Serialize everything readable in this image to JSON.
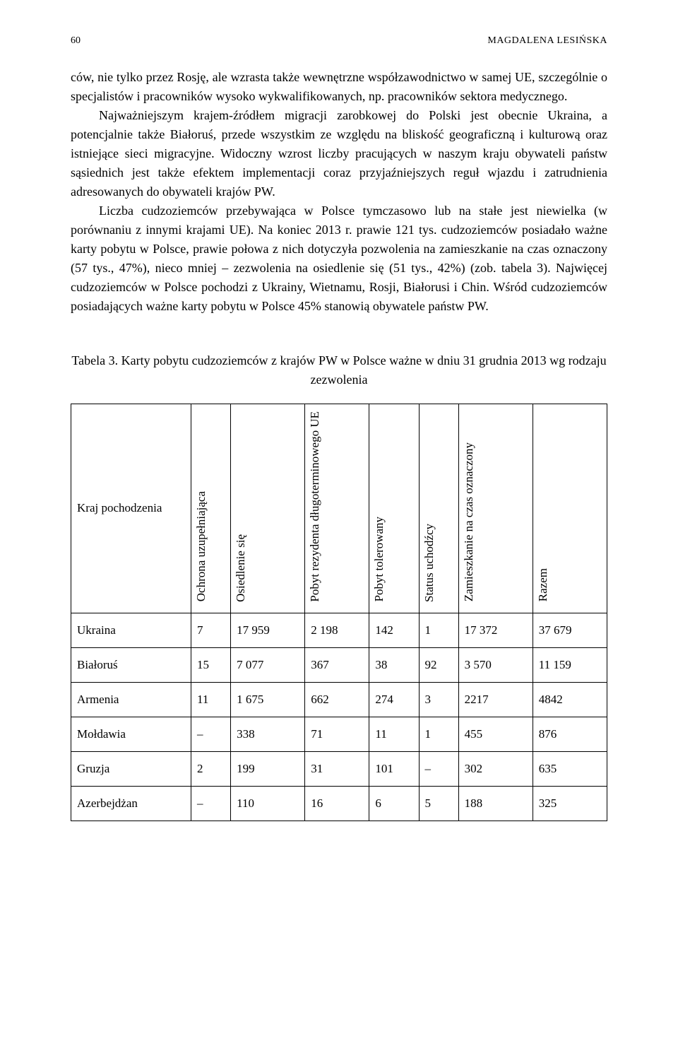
{
  "page_number": "60",
  "author": "MAGDALENA LESIŃSKA",
  "paragraphs": {
    "p1": "ców, nie tylko przez Rosję, ale wzrasta także wewnętrzne współzawodnictwo w samej UE, szczególnie o specjalistów i pracowników wysoko wykwalifikowanych, np. pracowników sektora medycznego.",
    "p2": "Najważniejszym krajem-źródłem migracji zarobkowej do Polski jest obecnie Ukraina, a potencjalnie także Białoruś, przede wszystkim ze względu na bliskość geograficzną i kulturową oraz istniejące sieci migracyjne. Widoczny wzrost liczby pracujących w naszym kraju obywateli państw sąsiednich jest także efektem implementacji coraz przyjaźniejszych reguł wjazdu i zatrudnienia adresowanych do obywateli krajów PW.",
    "p3": "Liczba cudzoziemców przebywająca w Polsce tymczasowo lub na stałe jest niewielka (w porównaniu z innymi krajami UE). Na koniec 2013 r. prawie 121 tys. cudzoziemców posiadało ważne karty pobytu w Polsce, prawie połowa z nich dotyczyła pozwolenia na zamieszkanie na czas oznaczony (57 tys., 47%), nieco mniej – zezwolenia na osiedlenie się (51 tys., 42%) (zob. tabela 3). Najwięcej cudzoziemców w Polsce pochodzi z Ukrainy, Wietnamu, Rosji, Białorusi i Chin. Wśród cudzoziemców posiadających ważne karty pobytu w Polsce 45% stanowią obywatele państw PW."
  },
  "table": {
    "caption": "Tabela 3. Karty pobytu cudzoziemców z krajów PW w Polsce ważne w dniu 31 grudnia 2013 wg rodzaju zezwolenia",
    "row_header": "Kraj pochodzenia",
    "columns": [
      "Ochrona uzupełniająca",
      "Osiedlenie się",
      "Pobyt rezydenta długoterminowego UE",
      "Pobyt tolerowany",
      "Status uchodźcy",
      "Zamieszkanie na czas oznaczony",
      "Razem"
    ],
    "rows": [
      {
        "country": "Ukraina",
        "cells": [
          "7",
          "17 959",
          "2 198",
          "142",
          "1",
          "17 372",
          "37 679"
        ]
      },
      {
        "country": "Białoruś",
        "cells": [
          "15",
          "7 077",
          "367",
          "38",
          "92",
          "3 570",
          "11 159"
        ]
      },
      {
        "country": "Armenia",
        "cells": [
          "11",
          "1 675",
          "662",
          "274",
          "3",
          "2217",
          "4842"
        ]
      },
      {
        "country": "Mołdawia",
        "cells": [
          "–",
          "338",
          "71",
          "11",
          "1",
          "455",
          "876"
        ]
      },
      {
        "country": "Gruzja",
        "cells": [
          "2",
          "199",
          "31",
          "101",
          "–",
          "302",
          "635"
        ]
      },
      {
        "country": "Azerbejdżan",
        "cells": [
          "–",
          "110",
          "16",
          "6",
          "5",
          "188",
          "325"
        ]
      }
    ]
  }
}
